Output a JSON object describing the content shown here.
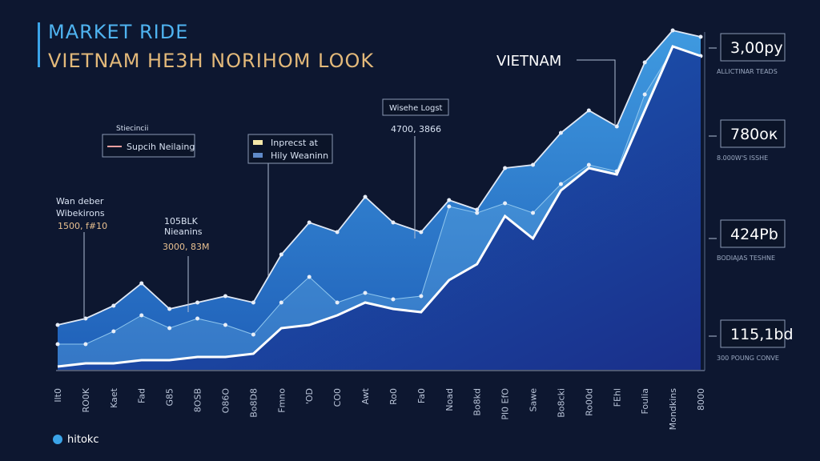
{
  "chart_data": {
    "type": "area",
    "title": "MARKET RIDE",
    "subtitle": "VIETNAM HE3H NORIHOM LOOK",
    "categories": [
      "Ilt0",
      "RO0K",
      "Kaet",
      "Fad",
      "G85",
      "8OSB",
      "O86O",
      "Bo8D8",
      "Fmno",
      "'OD",
      "CO0",
      "Awt",
      "Ro0",
      "Fa0",
      "Noad",
      "Bo8kd",
      "Pl0 EfO",
      "Sawe",
      "Bo8cki",
      "Ro00d",
      "FEhl",
      "Foulia",
      "Mondkins",
      "8000"
    ],
    "series": [
      {
        "name": "Supcih Neilaing",
        "color": "#3a8fd8",
        "values": [
          14,
          16,
          20,
          27,
          19,
          21,
          23,
          21,
          36,
          46,
          43,
          54,
          46,
          43,
          53,
          50,
          63,
          64,
          74,
          81,
          76,
          96,
          106,
          104
        ]
      },
      {
        "name": "Inprecst at",
        "color": "#8fc6ee",
        "values": [
          8,
          8,
          12,
          17,
          13,
          16,
          14,
          11,
          21,
          29,
          21,
          24,
          22,
          23,
          51,
          49,
          52,
          49,
          58,
          64,
          62,
          86,
          100,
          98
        ]
      },
      {
        "name": "Hily Weaninn",
        "color": "#ffffff",
        "values": [
          1,
          2,
          2,
          3,
          3,
          4,
          4,
          5,
          13,
          14,
          17,
          21,
          19,
          18,
          28,
          33,
          48,
          41,
          56,
          63,
          61,
          81,
          101,
          98
        ]
      }
    ],
    "ylim": [
      0,
      110
    ],
    "annotations": {
      "vietnam": "VIETNAM",
      "legend_head": "Stiecincii",
      "a1": [
        "Wan deber",
        "Wibekirons",
        "1500, f#10"
      ],
      "a2": [
        "105BLK",
        "Nieanins",
        "3000, 83M"
      ],
      "a3": [
        "Wisehe Logst",
        "4700, 3866"
      ]
    },
    "callouts": [
      {
        "value": "3,00ру",
        "caption": "ALLICTINAR TEADS"
      },
      {
        "value": "780ок",
        "caption": "8.000W'S ISSHE"
      },
      {
        "value": "424Рb",
        "caption": "BODIAJAS TESHNE"
      },
      {
        "value": "115,1bd",
        "caption": "300 POUNG CONVE"
      }
    ]
  },
  "brand": "hitokc"
}
